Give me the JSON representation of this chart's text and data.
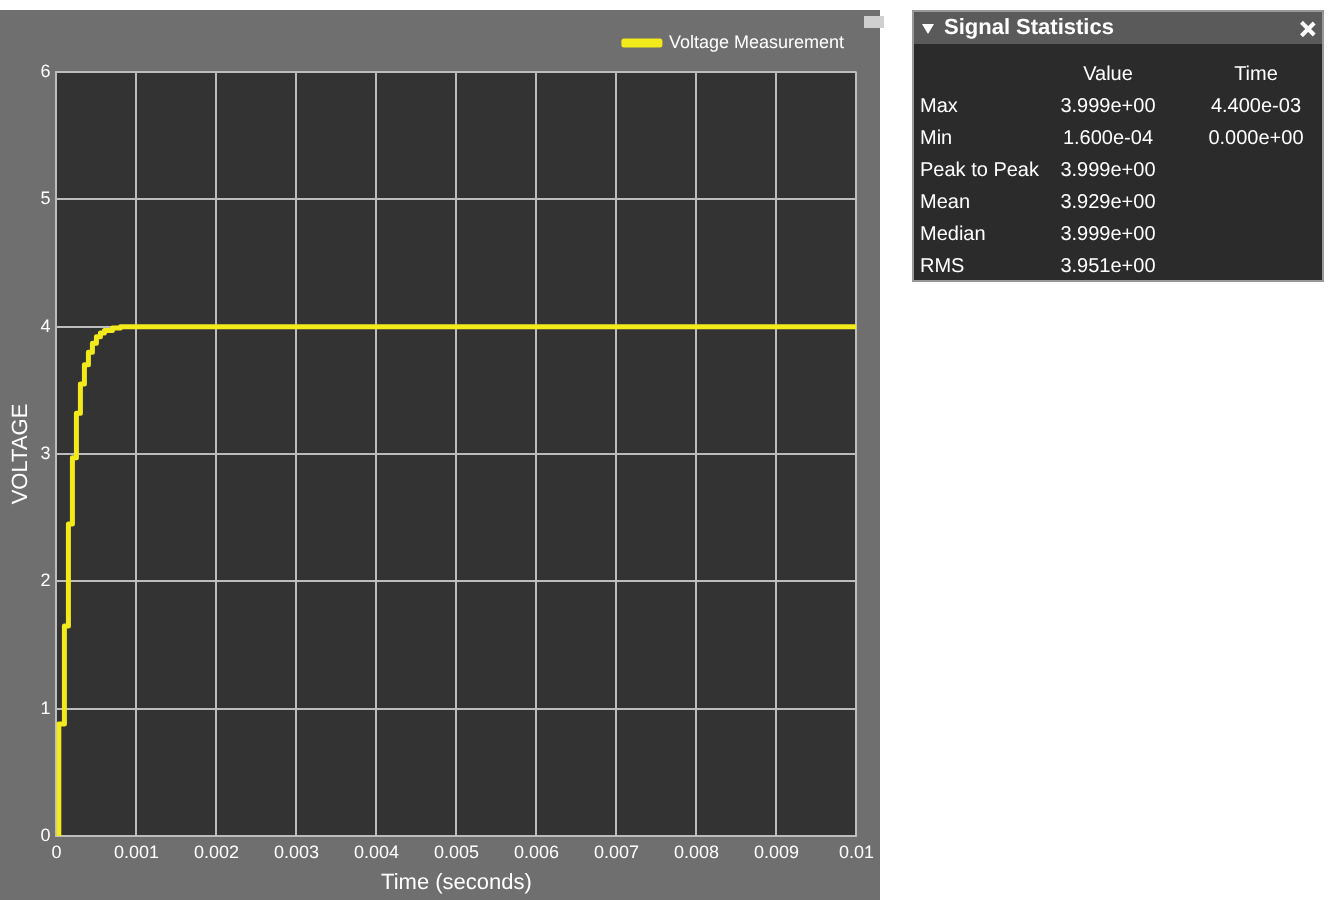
{
  "chart_data": {
    "type": "step",
    "xlabel": "Time (seconds)",
    "ylabel": "VOLTAGE",
    "series": [
      {
        "name": "Voltage Measurement",
        "color": "#f2ea1a",
        "x": [
          0,
          3e-05,
          0.0001,
          0.00015,
          0.0002,
          0.00025,
          0.0003,
          0.00035,
          0.0004,
          0.00045,
          0.0005,
          0.00055,
          0.0006,
          0.0007,
          0.0008,
          0.001,
          0.01
        ],
        "values": [
          0,
          0.88,
          1.65,
          2.45,
          2.97,
          3.32,
          3.55,
          3.7,
          3.8,
          3.87,
          3.92,
          3.95,
          3.97,
          3.99,
          4.0,
          4.0,
          4.0
        ]
      }
    ],
    "xlim": [
      0,
      0.01
    ],
    "xticks": [
      0,
      0.001,
      0.002,
      0.003,
      0.004,
      0.005,
      0.006,
      0.007,
      0.008,
      0.009,
      0.01
    ],
    "ylim": [
      0,
      6
    ],
    "yticks": [
      0,
      1,
      2,
      3,
      4,
      5,
      6
    ],
    "grid": true,
    "legend": "top right",
    "marker": "none",
    "line_style": "solid",
    "annotations": [
      "Signal Statistics",
      "Value",
      "Time",
      "Max",
      "3.999e+00",
      "4.400e-03",
      "Min",
      "1.600e-04",
      "0.000e+00",
      "Peak to Peak",
      "3.999e+00",
      "Mean",
      "3.929e+00",
      "Median",
      "3.999e+00",
      "RMS",
      "3.951e+00"
    ]
  }
}
